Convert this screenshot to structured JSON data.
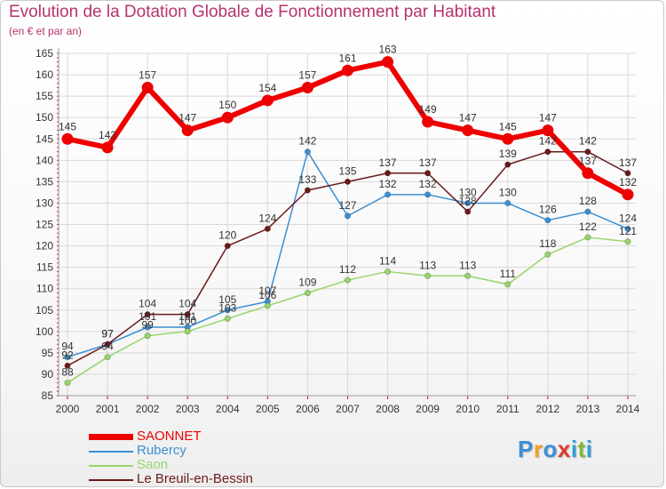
{
  "header": {
    "title": "Evolution de la Dotation Globale de Fonctionnement par Habitant",
    "subtitle": "(en € et par an)"
  },
  "colors": {
    "title": "#b5336f",
    "grid": "#d9d9d9",
    "axis_ticks": "#e0002b"
  },
  "logo": {
    "letters": [
      "P",
      "r",
      "o",
      "x",
      "i",
      "t",
      "i"
    ],
    "colors": [
      "#3b8fd6",
      "#f0a020",
      "#3b8fd6",
      "#e03a2f",
      "#2f9fd6",
      "#7bbb3a",
      "#2f9fd6"
    ]
  },
  "chart_data": {
    "type": "line",
    "title": "Evolution de la Dotation Globale de Fonctionnement par Habitant",
    "subtitle": "(en € et par an)",
    "xlabel": "",
    "ylabel": "",
    "x": [
      "2000",
      "2001",
      "2002",
      "2003",
      "2004",
      "2005",
      "2006",
      "2007",
      "2008",
      "2009",
      "2010",
      "2011",
      "2012",
      "2013",
      "2014"
    ],
    "ylim": [
      85,
      165
    ],
    "yticks": [
      85,
      90,
      95,
      100,
      105,
      110,
      115,
      120,
      125,
      130,
      135,
      140,
      145,
      150,
      155,
      160,
      165
    ],
    "grid": true,
    "legend_position": "bottom-left",
    "series": [
      {
        "name": "SAONNET",
        "color": "#ee0000",
        "values": [
          145,
          143,
          157,
          147,
          150,
          154,
          157,
          161,
          163,
          149,
          147,
          145,
          147,
          137,
          132
        ],
        "labels": [
          "145",
          "143",
          "157",
          "147",
          "150",
          "154",
          "157",
          "161",
          "163",
          "149",
          "147",
          "145",
          "147",
          "137",
          "132"
        ]
      },
      {
        "name": "Rubercy",
        "color": "#3a8fd4",
        "values": [
          94,
          97,
          101,
          101,
          105,
          107,
          142,
          127,
          132,
          132,
          130,
          130,
          126,
          128,
          124
        ],
        "labels": [
          "94",
          "97",
          "101",
          "101",
          "105",
          "107",
          "142",
          "127",
          "132",
          "132",
          "130",
          "130",
          "126",
          "128",
          "124"
        ]
      },
      {
        "name": "Saon",
        "color": "#98d56a",
        "values": [
          88,
          94,
          99,
          100,
          103,
          106,
          109,
          112,
          114,
          113,
          113,
          111,
          118,
          122,
          121
        ],
        "labels": [
          "88",
          "94",
          "99",
          "100",
          "103",
          "106",
          "109",
          "112",
          "114",
          "113",
          "113",
          "111",
          "118",
          "122",
          "121"
        ]
      },
      {
        "name": "Le Breuil-en-Bessin",
        "color": "#6b1a1a",
        "values": [
          92,
          97,
          104,
          104,
          120,
          124,
          133,
          135,
          137,
          137,
          128,
          139,
          142,
          142,
          137
        ],
        "labels": [
          "92",
          "97",
          "104",
          "104",
          "120",
          "124",
          "133",
          "135",
          "137",
          "137",
          "128",
          "139",
          "142",
          "142",
          "137"
        ]
      }
    ]
  }
}
